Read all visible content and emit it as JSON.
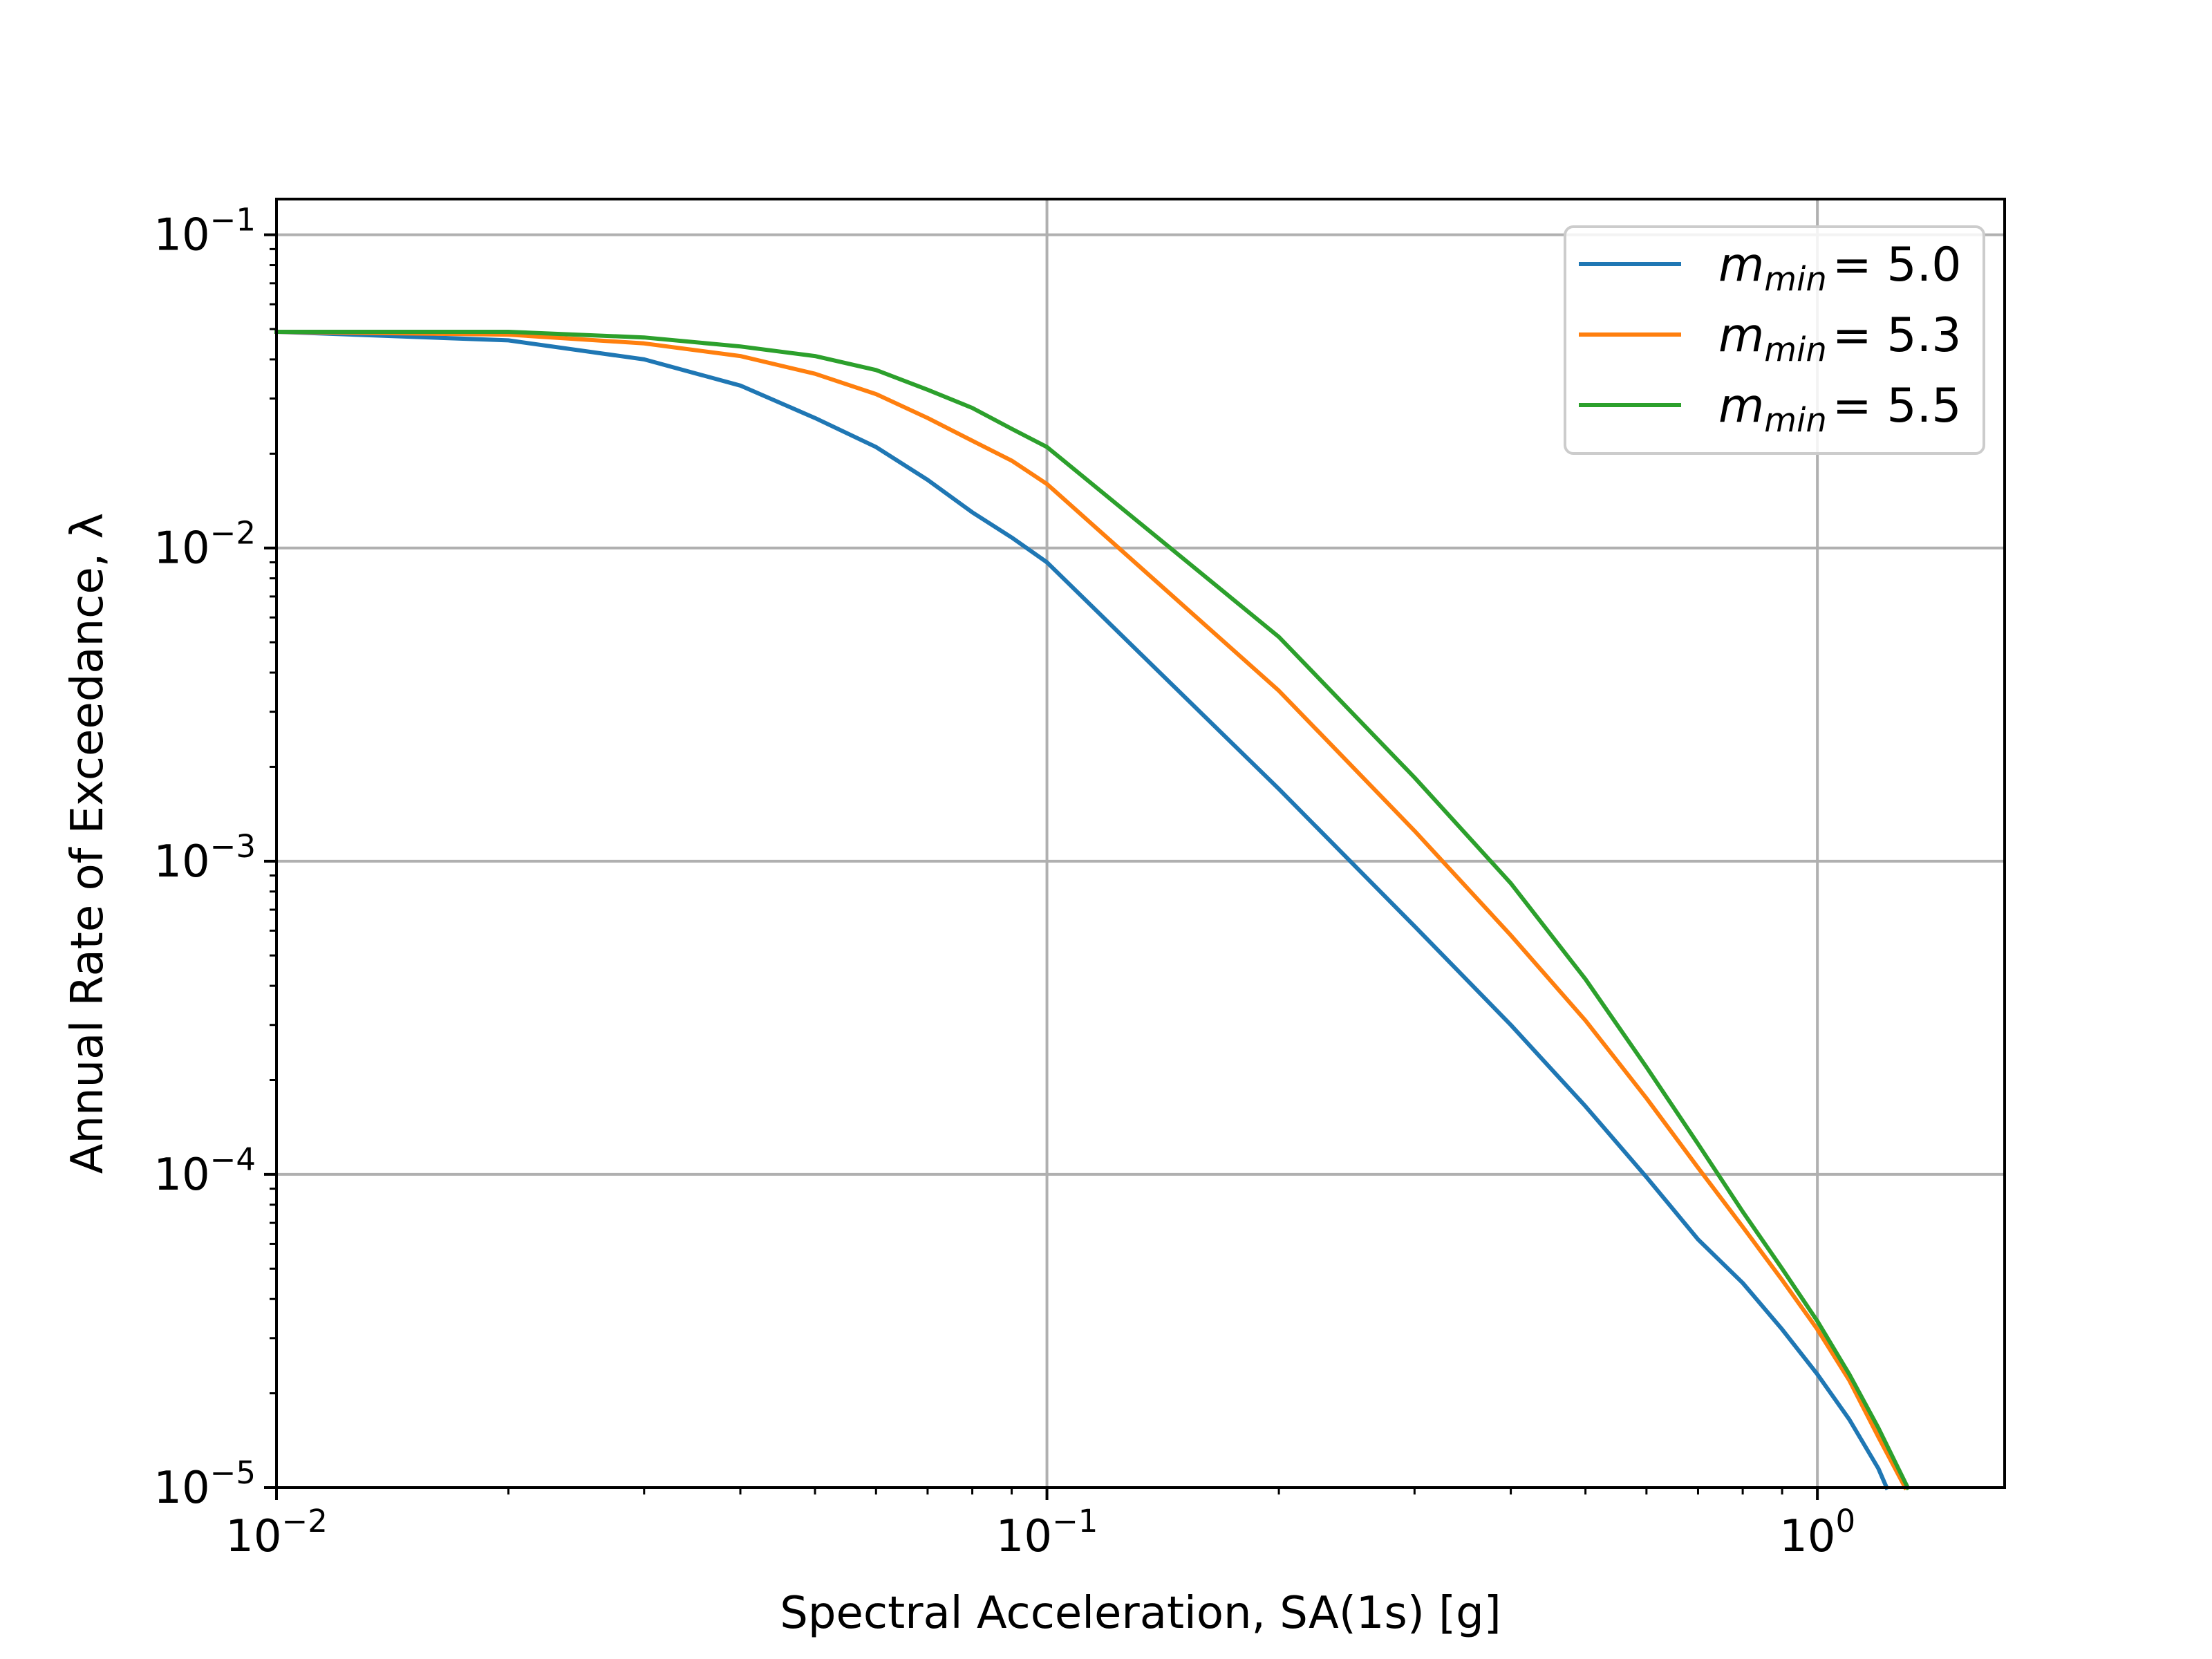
{
  "chart_data": {
    "type": "line",
    "xscale": "log",
    "yscale": "log",
    "xlim": [
      0.01,
      1.75
    ],
    "ylim": [
      1e-05,
      0.13
    ],
    "grid": true,
    "legend_position": "top-right",
    "xlabel": "Spectral Acceleration, SA(1s) [g]",
    "ylabel": "Annual Rate of Exceedance, λ",
    "x_ticks": [
      {
        "value": 0.01,
        "base": "10",
        "exp": "−2"
      },
      {
        "value": 0.1,
        "base": "10",
        "exp": "−1"
      },
      {
        "value": 1,
        "base": "10",
        "exp": "0"
      }
    ],
    "y_ticks": [
      {
        "value": 0.1,
        "base": "10",
        "exp": "−1"
      },
      {
        "value": 0.01,
        "base": "10",
        "exp": "−2"
      },
      {
        "value": 0.001,
        "base": "10",
        "exp": "−3"
      },
      {
        "value": 0.0001,
        "base": "10",
        "exp": "−4"
      },
      {
        "value": 1e-05,
        "base": "10",
        "exp": "−5"
      }
    ],
    "series": [
      {
        "name": "m_min = 5.0",
        "legend_var": "m",
        "legend_sub": "min",
        "legend_value": "= 5.0",
        "color": "#1f77b4",
        "x": [
          0.01,
          0.02,
          0.03,
          0.04,
          0.05,
          0.06,
          0.07,
          0.08,
          0.09,
          0.1,
          0.2,
          0.3,
          0.4,
          0.5,
          0.6,
          0.7,
          0.8,
          0.9,
          1.0,
          1.1,
          1.2,
          1.23
        ],
        "y": [
          0.049,
          0.046,
          0.04,
          0.033,
          0.026,
          0.021,
          0.0165,
          0.013,
          0.0108,
          0.009,
          0.0017,
          0.00062,
          0.0003,
          0.000165,
          9.8e-05,
          6.2e-05,
          4.5e-05,
          3.2e-05,
          2.3e-05,
          1.65e-05,
          1.15e-05,
          1e-05
        ]
      },
      {
        "name": "m_min = 5.3",
        "legend_var": "m",
        "legend_sub": "min",
        "legend_value": "= 5.3",
        "color": "#ff7f0e",
        "x": [
          0.01,
          0.02,
          0.03,
          0.04,
          0.05,
          0.06,
          0.07,
          0.08,
          0.09,
          0.1,
          0.2,
          0.3,
          0.4,
          0.5,
          0.6,
          0.7,
          0.8,
          0.9,
          1.0,
          1.1,
          1.2,
          1.3
        ],
        "y": [
          0.049,
          0.048,
          0.045,
          0.041,
          0.036,
          0.031,
          0.026,
          0.022,
          0.019,
          0.016,
          0.0035,
          0.00125,
          0.00058,
          0.00031,
          0.000175,
          0.000105,
          6.8e-05,
          4.6e-05,
          3.2e-05,
          2.2e-05,
          1.45e-05,
          1e-05
        ]
      },
      {
        "name": "m_min = 5.5",
        "legend_var": "m",
        "legend_sub": "min",
        "legend_value": "= 5.5",
        "color": "#2ca02c",
        "x": [
          0.01,
          0.02,
          0.03,
          0.04,
          0.05,
          0.06,
          0.07,
          0.08,
          0.09,
          0.1,
          0.2,
          0.3,
          0.4,
          0.5,
          0.6,
          0.7,
          0.8,
          0.9,
          1.0,
          1.1,
          1.2,
          1.31
        ],
        "y": [
          0.049,
          0.049,
          0.047,
          0.044,
          0.041,
          0.037,
          0.032,
          0.028,
          0.024,
          0.021,
          0.0052,
          0.00185,
          0.00085,
          0.00042,
          0.00022,
          0.000125,
          7.6e-05,
          5e-05,
          3.4e-05,
          2.3e-05,
          1.55e-05,
          1e-05
        ]
      }
    ]
  }
}
